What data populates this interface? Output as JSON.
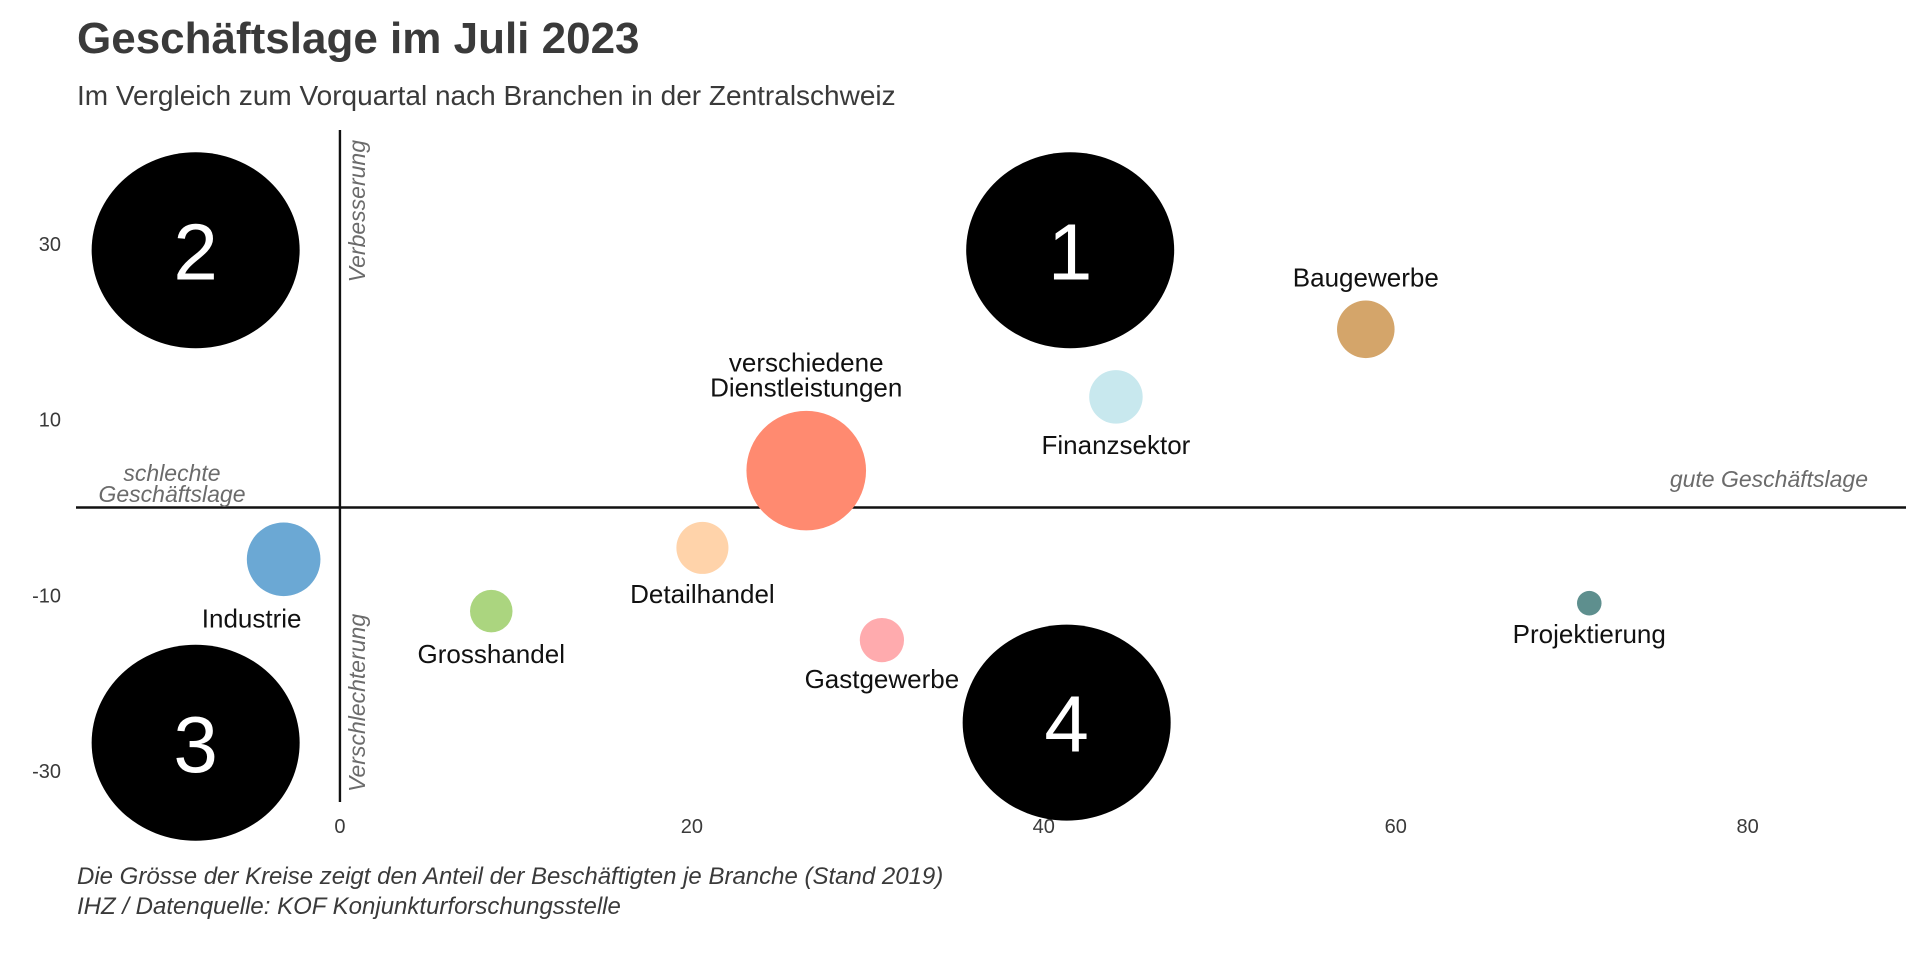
{
  "title": "Geschäftslage im Juli 2023",
  "subtitle": "Im Vergleich zum Vorquartal nach Branchen in der Zentralschweiz",
  "footer": {
    "note": "Die Grösse der Kreise zeigt den Anteil der Beschäftigten je Branche (Stand 2019)",
    "source": "IHZ / Datenquelle: KOF Konjunkturforschungsstelle"
  },
  "chart_data": {
    "type": "scatter",
    "title": "Geschäftslage im Juli 2023",
    "subtitle": "Im Vergleich zum Vorquartal nach Branchen in der Zentralschweiz",
    "xlim": [
      -15,
      89
    ],
    "ylim": [
      -34,
      43
    ],
    "x_ticks": [
      0,
      20,
      40,
      60,
      80
    ],
    "y_ticks": [
      30,
      10,
      -10,
      -30
    ],
    "grid": false,
    "axis_notes": {
      "left_line1": "schlechte",
      "left_line2": "Geschäftslage",
      "right": "gute Geschäftslage",
      "top": "Verbesserung",
      "bottom": "Verschlechterung"
    },
    "quadrants": [
      {
        "label": "1",
        "x": 41.5,
        "y": 29.3
      },
      {
        "label": "2",
        "x": -8.2,
        "y": 29.3
      },
      {
        "label": "3",
        "x": -8.2,
        "y": -26.8
      },
      {
        "label": "4",
        "x": 41.3,
        "y": -24.5
      }
    ],
    "points": [
      {
        "name": "Baugewerbe",
        "x": 58.3,
        "y": 20.3,
        "size": 2.2,
        "color": "#D4A56A"
      },
      {
        "name": "Finanzsektor",
        "x": 44.1,
        "y": 12.6,
        "size": 1.9,
        "color": "#C8E8EE"
      },
      {
        "name": "verschiedene Dienstleistungen",
        "name_line1": "verschiedene",
        "name_line2": "Dienstleistungen",
        "x": 26.5,
        "y": 4.2,
        "size": 9.5,
        "color": "#FF8A70"
      },
      {
        "name": "Industrie",
        "x": -3.2,
        "y": -5.9,
        "size": 3.6,
        "color": "#6BA8D4"
      },
      {
        "name": "Detailhandel",
        "x": 20.6,
        "y": -4.6,
        "size": 1.8,
        "color": "#FFD3AA"
      },
      {
        "name": "Grosshandel",
        "x": 8.6,
        "y": -11.8,
        "size": 1.2,
        "color": "#ABD57F"
      },
      {
        "name": "Gastgewerbe",
        "x": 30.8,
        "y": -15.1,
        "size": 1.3,
        "color": "#FFABAE"
      },
      {
        "name": "Projektierung",
        "x": 71.0,
        "y": -10.9,
        "size": 0.4,
        "color": "#5E8F8E"
      }
    ]
  }
}
